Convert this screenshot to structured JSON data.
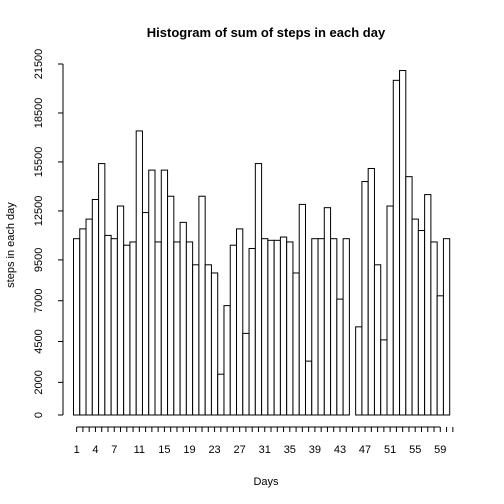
{
  "chart_data": {
    "type": "bar",
    "title": "Histogram of sum of steps in each day",
    "xlabel": "Days",
    "ylabel": "steps in each day",
    "x": [
      1,
      2,
      3,
      4,
      5,
      6,
      7,
      8,
      9,
      10,
      11,
      12,
      13,
      14,
      15,
      16,
      17,
      18,
      19,
      20,
      21,
      22,
      23,
      24,
      25,
      26,
      27,
      28,
      29,
      30,
      31,
      32,
      33,
      34,
      35,
      36,
      37,
      38,
      39,
      40,
      41,
      42,
      43,
      44,
      45,
      46,
      47,
      48,
      49,
      50,
      51,
      52,
      53,
      54,
      55,
      56,
      57,
      58,
      59,
      60,
      61
    ],
    "values": [
      10800,
      11400,
      12000,
      13200,
      15400,
      11000,
      10800,
      12800,
      10400,
      10600,
      17400,
      12400,
      15000,
      10600,
      15000,
      13400,
      10600,
      11800,
      10600,
      9200,
      13400,
      9200,
      8700,
      2500,
      6700,
      10400,
      11400,
      5000,
      10200,
      15400,
      10800,
      10700,
      10700,
      10900,
      10600,
      8700,
      12900,
      3300,
      10800,
      10800,
      12700,
      10800,
      7100,
      10800,
      0,
      5400,
      14300,
      15100,
      9200,
      4600,
      12800,
      20500,
      21100,
      14600,
      12000,
      11300,
      13500,
      10600,
      7300,
      10800,
      0
    ],
    "x_ticks": [
      1,
      4,
      7,
      11,
      15,
      19,
      23,
      27,
      31,
      35,
      39,
      43,
      47,
      51,
      55,
      59
    ],
    "y_ticks": [
      0,
      2000,
      4500,
      7000,
      9500,
      12500,
      15500,
      18500,
      21500
    ],
    "ylim": [
      0,
      21500
    ],
    "grid": false,
    "bar_fill": "#ffffff",
    "bar_stroke": "#000000"
  }
}
